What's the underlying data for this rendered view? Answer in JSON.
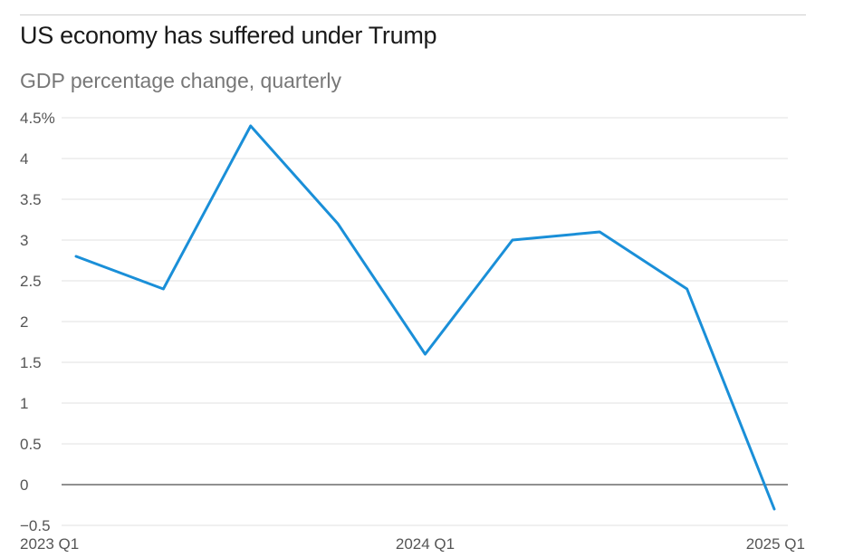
{
  "title": "US economy has suffered under Trump",
  "subtitle": "GDP percentage change, quarterly",
  "colors": {
    "line": "#1a8fd8",
    "grid": "#e2e2e2",
    "zero": "#222222"
  },
  "chart_data": {
    "type": "line",
    "title": "US economy has suffered under Trump",
    "subtitle": "GDP percentage change, quarterly",
    "xlabel": "",
    "ylabel": "",
    "x": [
      "2023 Q1",
      "2023 Q2",
      "2023 Q3",
      "2023 Q4",
      "2024 Q1",
      "2024 Q2",
      "2024 Q3",
      "2024 Q4",
      "2025 Q1"
    ],
    "series": [
      {
        "values": [
          2.8,
          2.4,
          4.4,
          3.2,
          1.6,
          3.0,
          3.1,
          2.4,
          -0.3
        ]
      }
    ],
    "ylim": [
      -0.5,
      4.5
    ],
    "yticks": [
      -0.5,
      0,
      0.5,
      1,
      1.5,
      2,
      2.5,
      3,
      3.5,
      4,
      4.5
    ],
    "ytick_labels": [
      "−0.5",
      "0",
      "0.5",
      "1",
      "1.5",
      "2",
      "2.5",
      "3",
      "3.5",
      "4",
      "4.5%"
    ],
    "xtick_labels": [
      "2023 Q1",
      "2024 Q1",
      "2025 Q1"
    ],
    "xtick_indices": [
      0,
      4,
      8
    ],
    "grid": true,
    "legend": "none"
  }
}
